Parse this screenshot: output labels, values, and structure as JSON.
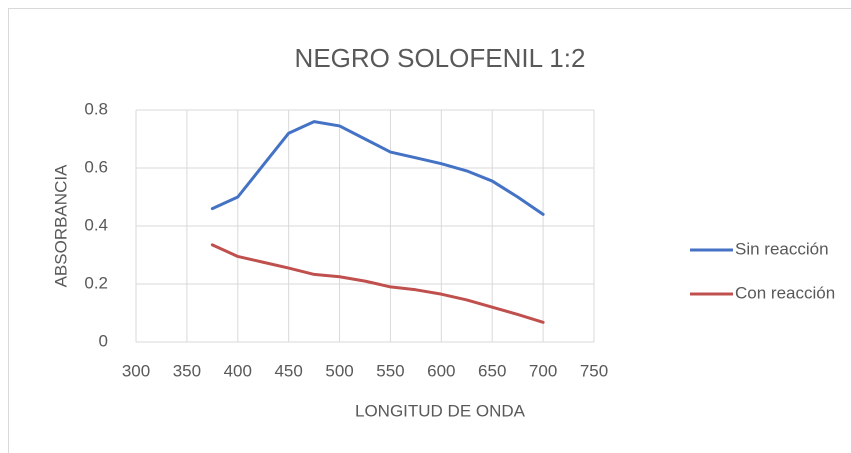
{
  "chart_data": {
    "type": "line",
    "title": "NEGRO SOLOFENIL 1:2",
    "x_label": "LONGITUD DE ONDA",
    "y_label": "ABSORBANCIA",
    "x": [
      375,
      400,
      425,
      450,
      475,
      500,
      525,
      550,
      575,
      600,
      625,
      650,
      675,
      700
    ],
    "series": [
      {
        "name": "Sin reacción",
        "color": "#4472c4",
        "values": [
          0.46,
          0.5,
          0.61,
          0.72,
          0.76,
          0.745,
          0.7,
          0.655,
          0.635,
          0.615,
          0.59,
          0.555,
          0.5,
          0.44
        ]
      },
      {
        "name": "Con reacción",
        "color": "#c0504d",
        "values": [
          0.335,
          0.295,
          0.275,
          0.255,
          0.233,
          0.225,
          0.21,
          0.19,
          0.18,
          0.165,
          0.145,
          0.12,
          0.095,
          0.068
        ]
      }
    ],
    "xlim": [
      300,
      750
    ],
    "xticks": [
      300,
      350,
      400,
      450,
      500,
      550,
      600,
      650,
      700,
      750
    ],
    "ylim": [
      0,
      0.8
    ],
    "yticks": [
      0,
      0.2,
      0.4,
      0.6,
      0.8
    ],
    "grid": true,
    "legend": "right"
  }
}
